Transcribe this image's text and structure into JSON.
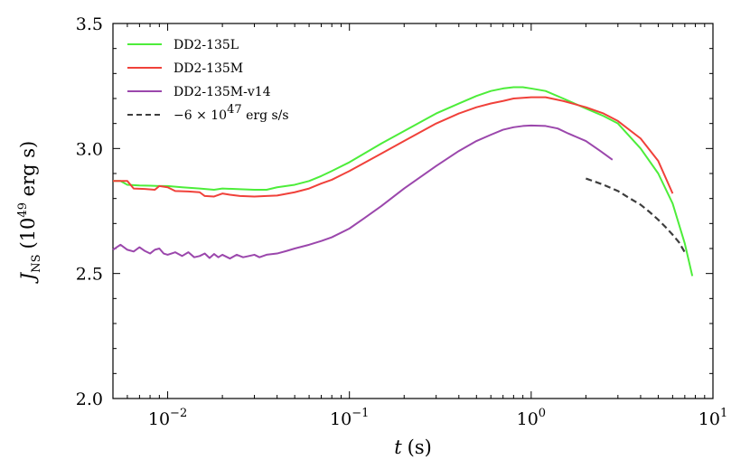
{
  "chart_data": {
    "type": "line",
    "title": "",
    "xlabel": {
      "var": "t",
      "unit": "(s)"
    },
    "ylabel": {
      "var": "J",
      "sub": "NS",
      "pre": "(10",
      "exp": "49",
      "post": " erg s)"
    },
    "xscale": "log",
    "xlim": [
      0.005,
      10
    ],
    "ylim": [
      2.0,
      3.5
    ],
    "x_ticks": [
      {
        "value": 0.01,
        "base": "10",
        "exp": "−2"
      },
      {
        "value": 0.1,
        "base": "10",
        "exp": "−1"
      },
      {
        "value": 1,
        "base": "10",
        "exp": "0"
      },
      {
        "value": 10,
        "base": "10",
        "exp": "1"
      }
    ],
    "y_ticks": [
      {
        "value": 2.0,
        "label": "2.0"
      },
      {
        "value": 2.5,
        "label": "2.5"
      },
      {
        "value": 3.0,
        "label": "3.0"
      },
      {
        "value": 3.5,
        "label": "3.5"
      }
    ],
    "legend_position": "top-left",
    "series": [
      {
        "name": "DD2-135L",
        "color": "#4ded3a",
        "style": "solid",
        "points": [
          [
            0.005,
            2.87
          ],
          [
            0.0055,
            2.87
          ],
          [
            0.006,
            2.855
          ],
          [
            0.007,
            2.852
          ],
          [
            0.008,
            2.851
          ],
          [
            0.009,
            2.85
          ],
          [
            0.01,
            2.85
          ],
          [
            0.012,
            2.845
          ],
          [
            0.015,
            2.84
          ],
          [
            0.018,
            2.835
          ],
          [
            0.02,
            2.84
          ],
          [
            0.025,
            2.837
          ],
          [
            0.03,
            2.835
          ],
          [
            0.035,
            2.835
          ],
          [
            0.04,
            2.845
          ],
          [
            0.05,
            2.855
          ],
          [
            0.06,
            2.87
          ],
          [
            0.07,
            2.89
          ],
          [
            0.08,
            2.91
          ],
          [
            0.1,
            2.945
          ],
          [
            0.15,
            3.02
          ],
          [
            0.2,
            3.07
          ],
          [
            0.3,
            3.14
          ],
          [
            0.4,
            3.18
          ],
          [
            0.5,
            3.21
          ],
          [
            0.6,
            3.23
          ],
          [
            0.7,
            3.24
          ],
          [
            0.8,
            3.245
          ],
          [
            0.9,
            3.245
          ],
          [
            1.0,
            3.24
          ],
          [
            1.2,
            3.23
          ],
          [
            1.5,
            3.2
          ],
          [
            2.0,
            3.16
          ],
          [
            2.5,
            3.13
          ],
          [
            3.0,
            3.1
          ],
          [
            4.0,
            3.0
          ],
          [
            5.0,
            2.9
          ],
          [
            6.0,
            2.78
          ],
          [
            7.0,
            2.62
          ],
          [
            7.7,
            2.49
          ]
        ]
      },
      {
        "name": "DD2-135M",
        "color": "#f0413a",
        "style": "solid",
        "points": [
          [
            0.005,
            2.87
          ],
          [
            0.006,
            2.87
          ],
          [
            0.0065,
            2.84
          ],
          [
            0.0075,
            2.838
          ],
          [
            0.0085,
            2.835
          ],
          [
            0.009,
            2.85
          ],
          [
            0.01,
            2.845
          ],
          [
            0.011,
            2.83
          ],
          [
            0.013,
            2.828
          ],
          [
            0.015,
            2.825
          ],
          [
            0.016,
            2.81
          ],
          [
            0.018,
            2.808
          ],
          [
            0.02,
            2.82
          ],
          [
            0.022,
            2.815
          ],
          [
            0.025,
            2.81
          ],
          [
            0.03,
            2.808
          ],
          [
            0.035,
            2.81
          ],
          [
            0.04,
            2.812
          ],
          [
            0.05,
            2.825
          ],
          [
            0.06,
            2.84
          ],
          [
            0.07,
            2.86
          ],
          [
            0.08,
            2.875
          ],
          [
            0.1,
            2.91
          ],
          [
            0.15,
            2.98
          ],
          [
            0.2,
            3.03
          ],
          [
            0.3,
            3.1
          ],
          [
            0.4,
            3.14
          ],
          [
            0.5,
            3.165
          ],
          [
            0.6,
            3.18
          ],
          [
            0.7,
            3.19
          ],
          [
            0.8,
            3.2
          ],
          [
            1.0,
            3.205
          ],
          [
            1.2,
            3.205
          ],
          [
            1.5,
            3.19
          ],
          [
            2.0,
            3.165
          ],
          [
            2.5,
            3.14
          ],
          [
            3.0,
            3.11
          ],
          [
            4.0,
            3.04
          ],
          [
            5.0,
            2.95
          ],
          [
            6.0,
            2.82
          ]
        ]
      },
      {
        "name": "DD2-135M-v14",
        "color": "#9b47ac",
        "style": "solid",
        "points": [
          [
            0.005,
            2.595
          ],
          [
            0.0055,
            2.615
          ],
          [
            0.006,
            2.595
          ],
          [
            0.0065,
            2.588
          ],
          [
            0.007,
            2.605
          ],
          [
            0.0075,
            2.59
          ],
          [
            0.008,
            2.58
          ],
          [
            0.0085,
            2.595
          ],
          [
            0.009,
            2.6
          ],
          [
            0.0095,
            2.58
          ],
          [
            0.01,
            2.575
          ],
          [
            0.011,
            2.585
          ],
          [
            0.012,
            2.57
          ],
          [
            0.013,
            2.585
          ],
          [
            0.014,
            2.565
          ],
          [
            0.015,
            2.57
          ],
          [
            0.016,
            2.58
          ],
          [
            0.017,
            2.562
          ],
          [
            0.018,
            2.578
          ],
          [
            0.019,
            2.565
          ],
          [
            0.02,
            2.575
          ],
          [
            0.022,
            2.56
          ],
          [
            0.024,
            2.575
          ],
          [
            0.026,
            2.565
          ],
          [
            0.028,
            2.57
          ],
          [
            0.03,
            2.575
          ],
          [
            0.032,
            2.565
          ],
          [
            0.035,
            2.575
          ],
          [
            0.04,
            2.58
          ],
          [
            0.045,
            2.59
          ],
          [
            0.05,
            2.6
          ],
          [
            0.06,
            2.615
          ],
          [
            0.07,
            2.63
          ],
          [
            0.08,
            2.645
          ],
          [
            0.1,
            2.68
          ],
          [
            0.12,
            2.72
          ],
          [
            0.15,
            2.77
          ],
          [
            0.2,
            2.84
          ],
          [
            0.3,
            2.93
          ],
          [
            0.4,
            2.99
          ],
          [
            0.5,
            3.03
          ],
          [
            0.6,
            3.055
          ],
          [
            0.7,
            3.075
          ],
          [
            0.8,
            3.085
          ],
          [
            0.9,
            3.09
          ],
          [
            1.0,
            3.092
          ],
          [
            1.2,
            3.09
          ],
          [
            1.4,
            3.08
          ],
          [
            1.6,
            3.06
          ],
          [
            2.0,
            3.03
          ],
          [
            2.4,
            2.99
          ],
          [
            2.8,
            2.955
          ]
        ]
      },
      {
        "name": "−6 × 10^47 erg s/s",
        "legend": {
          "pre": "−6 × 10",
          "exp": "47",
          "post": " erg s/s"
        },
        "color": "#3d3d3d",
        "style": "dashed",
        "points": [
          [
            2.0,
            2.88
          ],
          [
            2.5,
            2.855
          ],
          [
            3.0,
            2.83
          ],
          [
            3.5,
            2.8
          ],
          [
            4.0,
            2.775
          ],
          [
            4.5,
            2.745
          ],
          [
            5.0,
            2.715
          ],
          [
            5.5,
            2.685
          ],
          [
            6.0,
            2.655
          ],
          [
            6.5,
            2.625
          ],
          [
            7.0,
            2.585
          ]
        ]
      }
    ]
  }
}
